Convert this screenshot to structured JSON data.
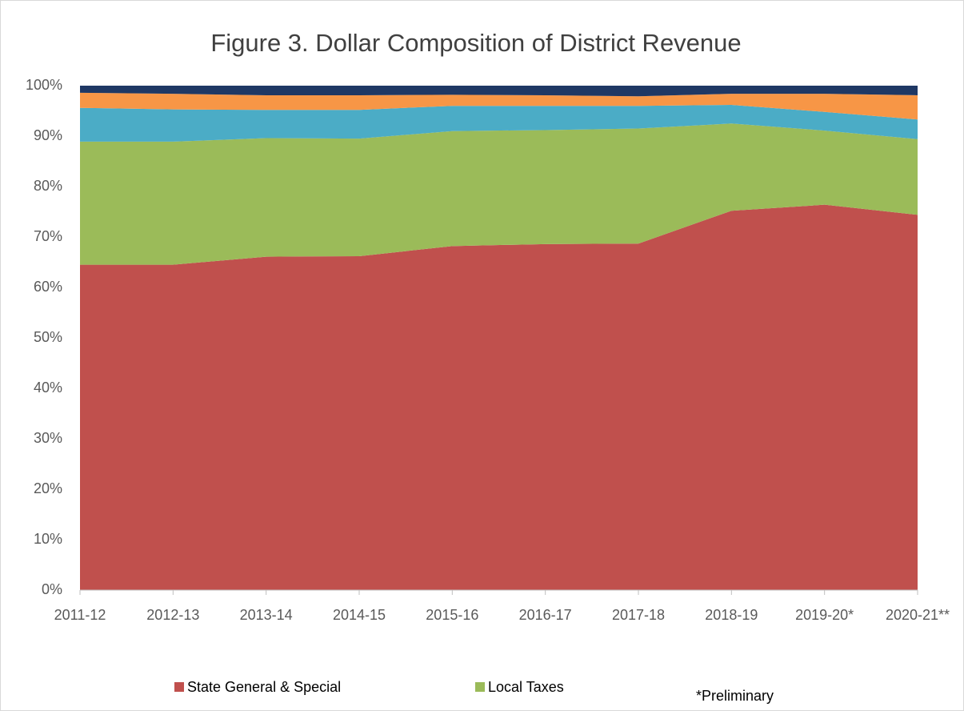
{
  "chart_data": {
    "type": "stacked_area",
    "title": "Figure 3. Dollar Composition of District Revenue",
    "annotation": "*Preliminary",
    "categories": [
      "2011-12",
      "2012-13",
      "2013-14",
      "2014-15",
      "2015-16",
      "2016-17",
      "2017-18",
      "2018-19",
      "2019-20*",
      "2020-21**"
    ],
    "series": [
      {
        "name": "State General & Special",
        "color": "#c0504d",
        "values": [
          64.5,
          64.5,
          66.1,
          66.2,
          68.2,
          68.6,
          68.7,
          75.2,
          76.4,
          74.4
        ]
      },
      {
        "name": "Local Taxes",
        "color": "#9bbb59",
        "values": [
          24.4,
          24.4,
          23.5,
          23.3,
          22.8,
          22.6,
          22.8,
          17.3,
          14.7,
          15.0
        ]
      },
      {
        "color": "#4bacc6",
        "values": [
          6.7,
          6.4,
          5.6,
          5.7,
          5.0,
          4.8,
          4.5,
          3.7,
          3.7,
          3.9
        ]
      },
      {
        "color": "#f79646",
        "values": [
          3.0,
          3.1,
          2.9,
          2.9,
          2.2,
          2.1,
          1.9,
          2.2,
          3.6,
          4.8
        ]
      },
      {
        "color": "#1f3864",
        "values": [
          1.4,
          1.6,
          1.9,
          1.9,
          1.8,
          1.9,
          2.1,
          1.6,
          1.6,
          1.9
        ]
      }
    ],
    "ylim": [
      0,
      100
    ],
    "yticks": [
      {
        "value": 0,
        "label": "0%"
      },
      {
        "value": 10,
        "label": "10%"
      },
      {
        "value": 20,
        "label": "20%"
      },
      {
        "value": 30,
        "label": "30%"
      },
      {
        "value": 40,
        "label": "40%"
      },
      {
        "value": 50,
        "label": "50%"
      },
      {
        "value": 60,
        "label": "60%"
      },
      {
        "value": 70,
        "label": "70%"
      },
      {
        "value": 80,
        "label": "80%"
      },
      {
        "value": 90,
        "label": "90%"
      },
      {
        "value": 100,
        "label": "100%"
      }
    ],
    "grid": false,
    "legend": "bottom"
  }
}
